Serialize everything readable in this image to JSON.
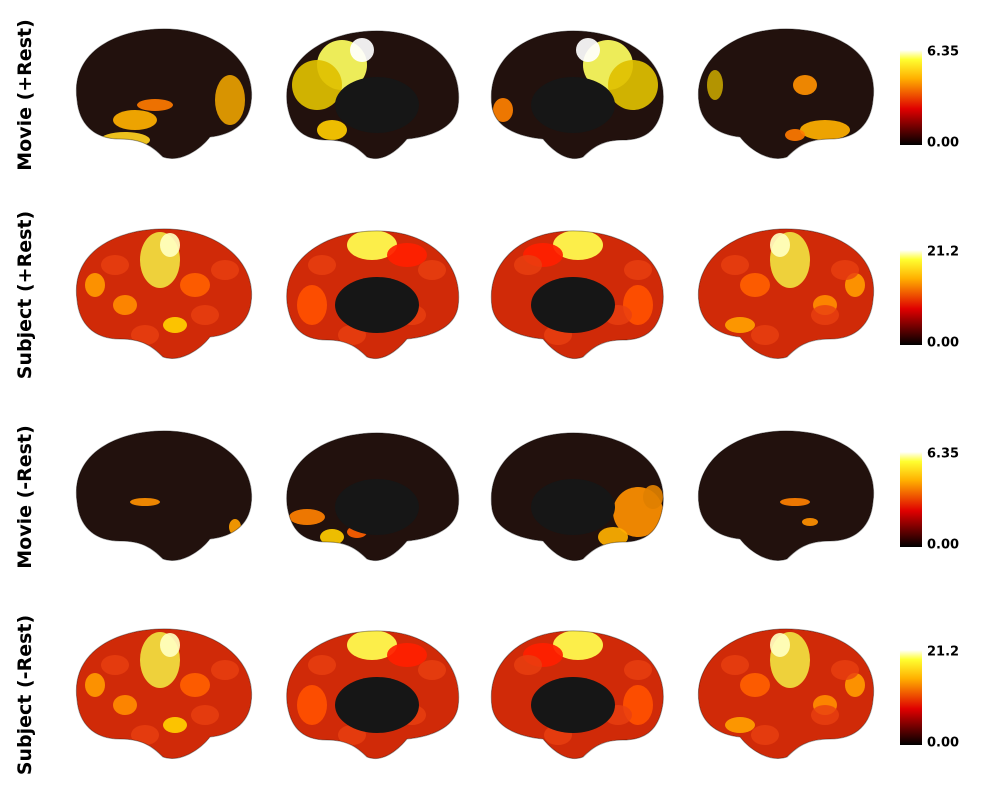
{
  "rows": [
    {
      "label": "Movie (+Rest)",
      "colorbar": {
        "max": "6.35",
        "min": "0.00"
      }
    },
    {
      "label": "Subject (+Rest)",
      "colorbar": {
        "max": "21.2",
        "min": "0.00"
      }
    },
    {
      "label": "Movie (-Rest)",
      "colorbar": {
        "max": "6.35",
        "min": "0.00"
      }
    },
    {
      "label": "Subject (-Rest)",
      "colorbar": {
        "max": "21.2",
        "min": "0.00"
      }
    }
  ]
}
